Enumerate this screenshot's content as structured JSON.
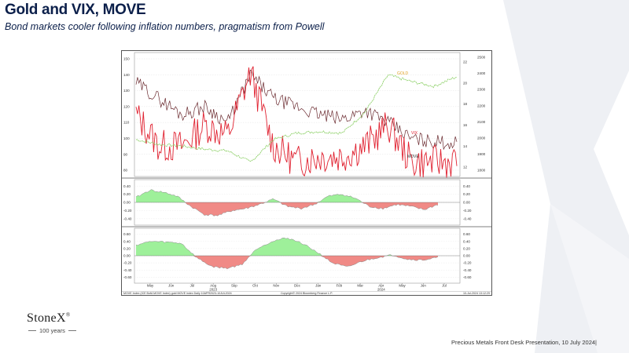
{
  "header": {
    "title": "Gold and VIX, MOVE",
    "subtitle": "Bond markets cooler following inflation numbers, pragmatism from Powell"
  },
  "colors": {
    "title": "#0b1f4a",
    "gold": "#8fd16a",
    "vix": "#e0202f",
    "move": "#6b2b30",
    "positive_fill": "#9ef09a",
    "negative_fill": "#f08a86"
  },
  "chart_data": [
    {
      "type": "line",
      "panel": "main",
      "series": [
        {
          "name": "Gold",
          "axis": "right-outer",
          "x": [
            "May",
            "Jun",
            "Jul",
            "Aug",
            "Sep",
            "Oct",
            "Nov",
            "Dec",
            "Jan",
            "Feb",
            "Mar",
            "Apr",
            "May",
            "Jun",
            "Jul"
          ],
          "values": [
            1990,
            1960,
            1950,
            1930,
            1920,
            1850,
            1990,
            2030,
            2040,
            2030,
            2160,
            2390,
            2350,
            2320,
            2380
          ]
        },
        {
          "name": "VIX",
          "axis": "right-inner",
          "x": [
            "May",
            "Jun",
            "Jul",
            "Aug",
            "Sep",
            "Oct",
            "Nov",
            "Dec",
            "Jan",
            "Feb",
            "Mar",
            "Apr",
            "May",
            "Jun",
            "Jul"
          ],
          "values": [
            17,
            14,
            14,
            16,
            15,
            21,
            14,
            12.5,
            13,
            13,
            14,
            16,
            12.5,
            12.5,
            12.5
          ]
        },
        {
          "name": "MOVE",
          "axis": "left",
          "x": [
            "May",
            "Jun",
            "Jul",
            "Aug",
            "Sep",
            "Oct",
            "Nov",
            "Dec",
            "Jan",
            "Feb",
            "Mar",
            "Apr",
            "May",
            "Jun",
            "Jul"
          ],
          "values": [
            135,
            125,
            115,
            120,
            110,
            140,
            125,
            120,
            115,
            112,
            118,
            110,
            100,
            98,
            97
          ]
        }
      ],
      "left_axis": {
        "ticks": [
          80,
          90,
          100,
          110,
          120,
          130,
          140,
          150
        ]
      },
      "right_inner_axis": {
        "ticks": [
          12,
          14,
          16,
          18,
          20,
          22
        ]
      },
      "right_outer_axis": {
        "ticks": [
          1800,
          1900,
          2000,
          2100,
          2200,
          2300,
          2400,
          2500
        ]
      }
    },
    {
      "type": "area",
      "panel": "correlation-1",
      "ticks": [
        0.4,
        0.2,
        0.0,
        -0.2,
        -0.4
      ],
      "tick_labels": [
        "0.40",
        "0.20",
        "0.00",
        "-0.20",
        "-0.40"
      ],
      "values": [
        0.12,
        0.3,
        0.25,
        0.15,
        -0.1,
        -0.3,
        -0.32,
        -0.2,
        -0.15,
        -0.05,
        0.08,
        -0.1,
        -0.15,
        -0.05,
        0.15,
        0.2,
        0.1,
        -0.1,
        -0.15,
        -0.05,
        -0.1,
        -0.18,
        -0.05
      ]
    },
    {
      "type": "area",
      "panel": "correlation-2",
      "ticks": [
        0.6,
        0.4,
        0.2,
        0.0,
        -0.2,
        -0.4,
        -0.6
      ],
      "tick_labels": [
        "0.60",
        "0.40",
        "0.20",
        "0.00",
        "-0.20",
        "-0.40",
        "-0.60"
      ],
      "values": [
        0.3,
        0.4,
        0.38,
        0.35,
        -0.05,
        -0.3,
        -0.35,
        -0.25,
        0.2,
        0.4,
        0.5,
        0.35,
        0.1,
        -0.2,
        -0.32,
        -0.15,
        -0.05,
        0.02,
        -0.1,
        -0.12,
        -0.05
      ]
    }
  ],
  "labels": {
    "gold_series": "GOLD",
    "vix_series": "VIX",
    "move_series": "MOVE"
  },
  "x_axis": {
    "months": [
      "May",
      "Jun",
      "Jul",
      "Aug",
      "Sep",
      "Oct",
      "Nov",
      "Dec",
      "Jan",
      "Feb",
      "Mar",
      "Apr",
      "May",
      "Jun",
      "Jul"
    ],
    "years": [
      "2023",
      "2024"
    ]
  },
  "chart_footer": {
    "left": "MOVE Index (ICE BofA MOVE Index) gold MOVE index   Daily 10APR2023-10JUL2024",
    "center": "Copyright© 2024 Bloomberg Finance L.P.",
    "right": "10-Jul-2024 13:12:29"
  },
  "branding": {
    "name": "StoneX",
    "tagline": "100 years"
  },
  "footer": {
    "text": "Precious Metals Front Desk Presentation, 10 July 2024|"
  }
}
